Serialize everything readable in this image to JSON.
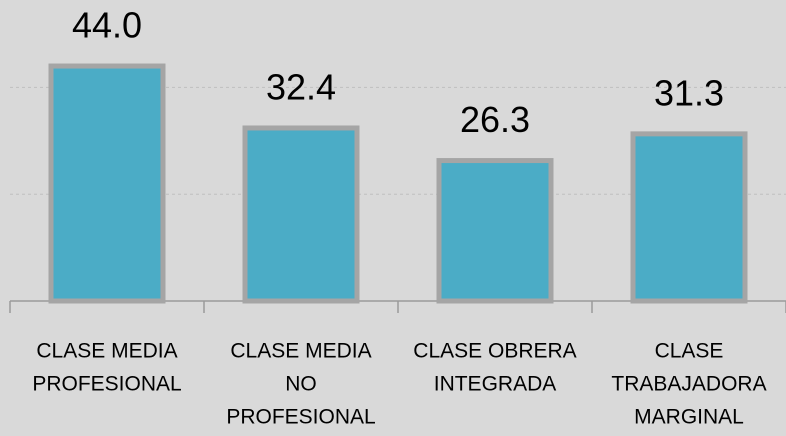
{
  "chart_data": {
    "type": "bar",
    "categories": [
      [
        "CLASE MEDIA",
        "PROFESIONAL"
      ],
      [
        "CLASE MEDIA",
        "NO",
        "PROFESIONAL"
      ],
      [
        "CLASE OBRERA",
        "INTEGRADA"
      ],
      [
        "CLASE",
        "TRABAJADORA",
        "MARGINAL"
      ]
    ],
    "values": [
      44,
      32.4,
      26.3,
      31.3
    ],
    "value_labels": [
      "44.0",
      "32.4",
      "26.3",
      "31.3"
    ],
    "color": "#4bacc6",
    "ylim": [
      0,
      50
    ],
    "yticks": [
      0,
      20,
      40
    ],
    "grid": true
  }
}
